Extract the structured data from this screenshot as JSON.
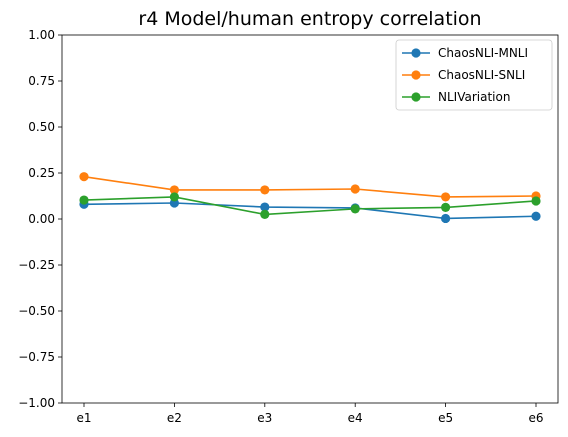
{
  "chart_data": {
    "type": "line",
    "title": "r4 Model/human entropy correlation",
    "xlabel": "",
    "ylabel": "",
    "categories": [
      "e1",
      "e2",
      "e3",
      "e4",
      "e5",
      "e6"
    ],
    "ylim": [
      -1.0,
      1.0
    ],
    "yticks": [
      -1.0,
      -0.75,
      -0.5,
      -0.25,
      0.0,
      0.25,
      0.5,
      0.75,
      1.0
    ],
    "ytick_labels": [
      "−1.00",
      "−0.75",
      "−0.50",
      "−0.25",
      "0.00",
      "0.25",
      "0.50",
      "0.75",
      "1.00"
    ],
    "grid": false,
    "legend_position": "top-right",
    "series": [
      {
        "name": "ChaosNLI-MNLI",
        "color": "#1f77b4",
        "values": [
          0.08,
          0.087,
          0.065,
          0.06,
          0.003,
          0.015
        ]
      },
      {
        "name": "ChaosNLI-SNLI",
        "color": "#ff7f0e",
        "values": [
          0.23,
          0.158,
          0.158,
          0.163,
          0.12,
          0.125
        ]
      },
      {
        "name": "NLIVariation",
        "color": "#2ca02c",
        "values": [
          0.103,
          0.12,
          0.025,
          0.055,
          0.063,
          0.098
        ]
      }
    ]
  }
}
